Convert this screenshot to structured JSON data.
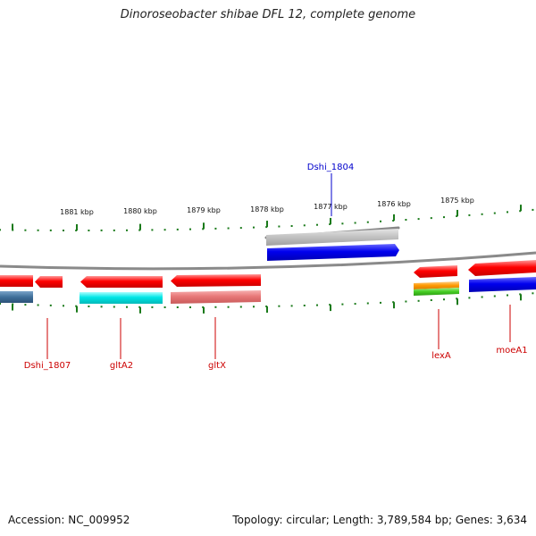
{
  "title": "Dinoroseobacter shibae DFL 12, complete genome",
  "accession_label": "Accession: NC_009952",
  "topology_label": "Topology: circular; Length: 3,789,584 bp; Genes: 3,634",
  "scale_ticks": [
    "1881 kbp",
    "1880 kbp",
    "1879 kbp",
    "1878 kbp",
    "1877 kbp",
    "1876 kbp",
    "1875 kbp"
  ],
  "gene_labels": [
    {
      "text": "Dshi_1804",
      "color": "#0000cc"
    },
    {
      "text": "Dshi_1807",
      "color": "#cc0000"
    },
    {
      "text": "gltA2",
      "color": "#cc0000"
    },
    {
      "text": "gltX",
      "color": "#cc0000"
    },
    {
      "text": "lexA",
      "color": "#cc0000"
    },
    {
      "text": "moeA1",
      "color": "#cc0000"
    }
  ],
  "colors": {
    "backbone": "#8a8a8a",
    "ticks": "#1a7a1a",
    "red": "#ff0000",
    "blue": "#0000ee",
    "steel_blue": "#3f6f9a",
    "cyan": "#00e6e6",
    "salmon": "#e87878",
    "gray": "#c4c4c4",
    "orange": "#ff9900",
    "green": "#44cc22"
  }
}
